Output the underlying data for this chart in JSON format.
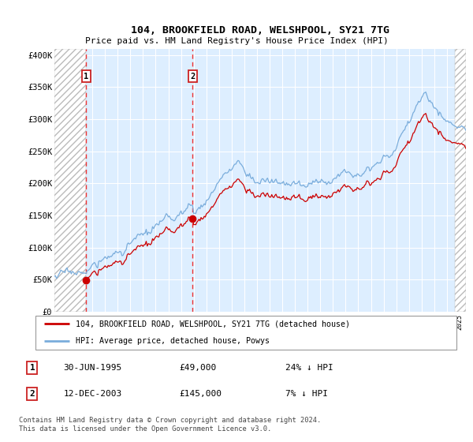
{
  "title": "104, BROOKFIELD ROAD, WELSHPOOL, SY21 7TG",
  "subtitle": "Price paid vs. HM Land Registry's House Price Index (HPI)",
  "hpi_label": "HPI: Average price, detached house, Powys",
  "property_label": "104, BROOKFIELD ROAD, WELSHPOOL, SY21 7TG (detached house)",
  "footnote": "Contains HM Land Registry data © Crown copyright and database right 2024.\nThis data is licensed under the Open Government Licence v3.0.",
  "sale1_date": "30-JUN-1995",
  "sale1_price": 49000,
  "sale1_pct": "24% ↓ HPI",
  "sale2_date": "12-DEC-2003",
  "sale2_price": 145000,
  "sale2_pct": "7% ↓ HPI",
  "ylim": [
    0,
    410000
  ],
  "yticks": [
    0,
    50000,
    100000,
    150000,
    200000,
    250000,
    300000,
    350000,
    400000
  ],
  "ytick_labels": [
    "£0",
    "£50K",
    "£100K",
    "£150K",
    "£200K",
    "£250K",
    "£300K",
    "£350K",
    "£400K"
  ],
  "hpi_color": "#7aaddc",
  "property_color": "#cc0000",
  "dot_color": "#cc0000",
  "vline_color": "#ee3333",
  "sale1_x": 1995.5,
  "sale2_x": 2003.92,
  "xmin": 1993.0,
  "xmax": 2025.5,
  "hatch_right_start": 2024.6
}
